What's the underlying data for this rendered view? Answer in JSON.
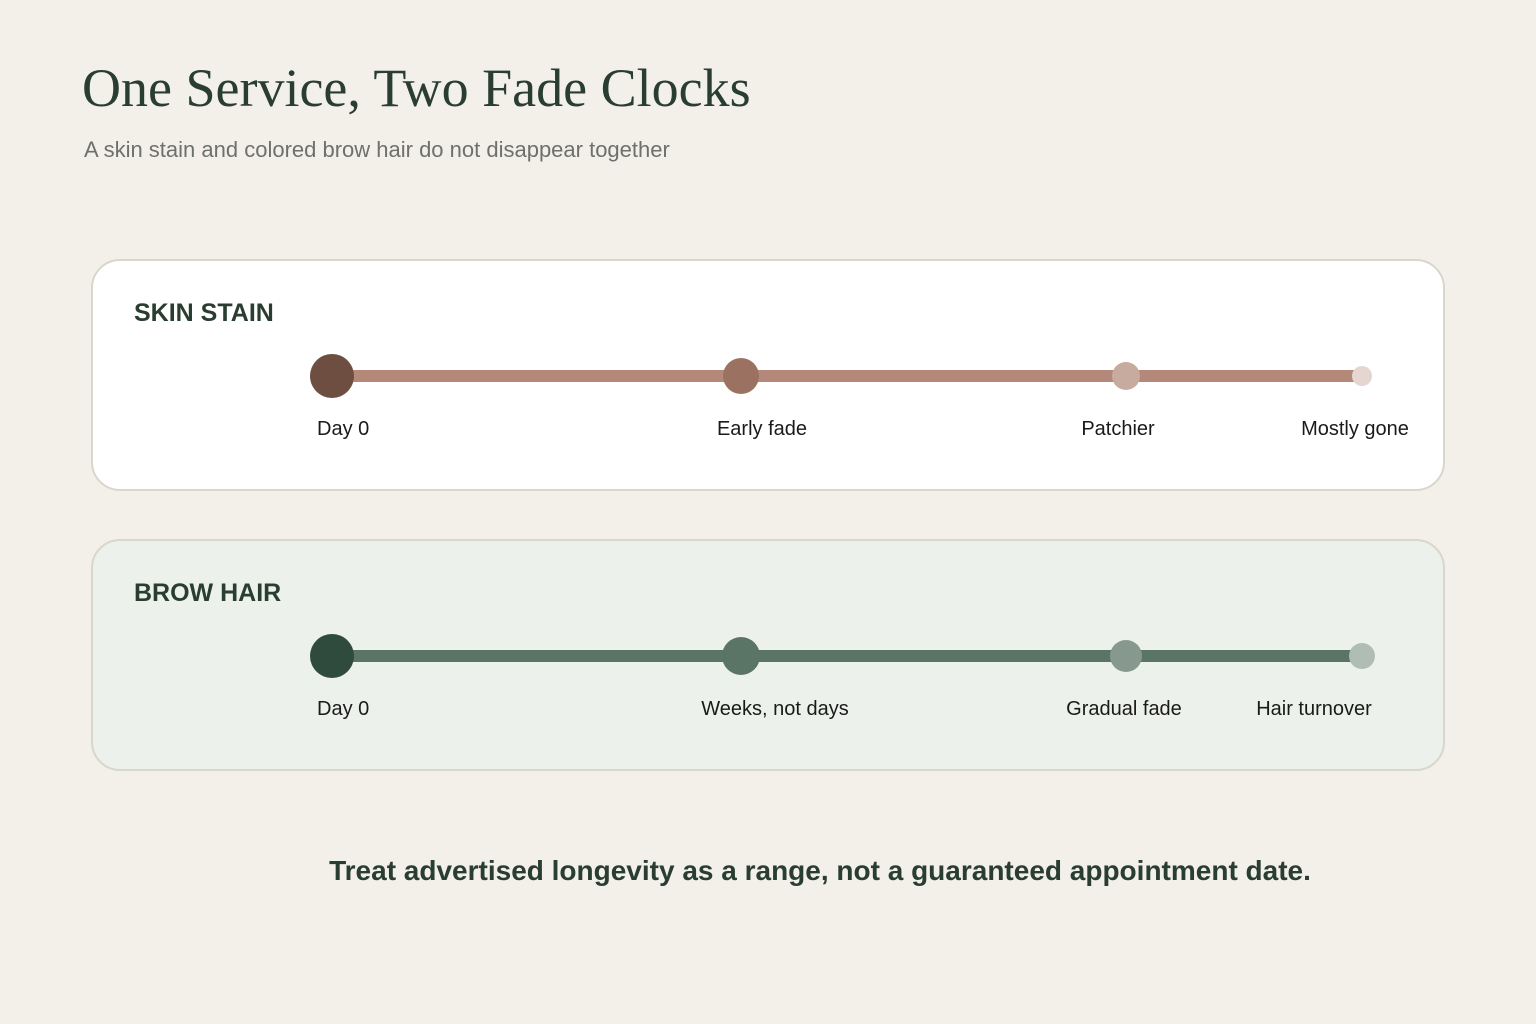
{
  "header": {
    "title": "One Service, Two Fade Clocks",
    "subtitle": "A skin stain and colored brow hair do not disappear together"
  },
  "tracks": [
    {
      "label": "SKIN STAIN",
      "stages": [
        "Day 0",
        "Early fade",
        "Patchier",
        "Mostly gone"
      ]
    },
    {
      "label": "BROW HAIR",
      "stages": [
        "Day 0",
        "Weeks, not days",
        "Gradual fade",
        "Hair turnover"
      ]
    }
  ],
  "footer": {
    "note": "Treat advertised longevity as a range, not a guaranteed appointment date."
  }
}
